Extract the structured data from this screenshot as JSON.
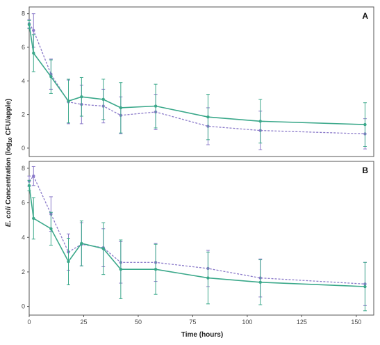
{
  "chart_data": {
    "type": "line",
    "xlabel": "Time (hours)",
    "ylabel_parts": [
      "E. coli",
      " Concentration (log",
      "10",
      " CFU/apple)"
    ],
    "xlim": [
      0,
      158
    ],
    "ylim": [
      -0.5,
      8.4
    ],
    "x_ticks": [
      0,
      25,
      50,
      75,
      100,
      125,
      150
    ],
    "y_ticks": [
      0,
      2,
      4,
      6,
      8
    ],
    "grid": false,
    "colors": {
      "solid": "#3aa88a",
      "dashed": "#8a79c9",
      "frame": "#555555"
    },
    "panels": [
      {
        "tag": "A",
        "series": [
          {
            "style": "solid",
            "points": [
              {
                "x": 0,
                "y": 7.35,
                "err": 0.25
              },
              {
                "x": 2,
                "y": 5.65,
                "err": 1.1
              },
              {
                "x": 10,
                "y": 4.25,
                "err": 1.0
              },
              {
                "x": 18,
                "y": 2.8,
                "err": 1.3
              },
              {
                "x": 24,
                "y": 3.05,
                "err": 1.15
              },
              {
                "x": 34,
                "y": 2.9,
                "err": 1.2
              },
              {
                "x": 42,
                "y": 2.4,
                "err": 1.5
              },
              {
                "x": 58,
                "y": 2.5,
                "err": 1.3
              },
              {
                "x": 82,
                "y": 1.85,
                "err": 1.35
              },
              {
                "x": 106,
                "y": 1.6,
                "err": 1.3
              },
              {
                "x": 154,
                "y": 1.4,
                "err": 1.3
              }
            ]
          },
          {
            "style": "dashed",
            "points": [
              {
                "x": 0,
                "y": 7.4,
                "err": 0.25
              },
              {
                "x": 2,
                "y": 7.0,
                "err": 1.0
              },
              {
                "x": 10,
                "y": 4.4,
                "err": 0.9
              },
              {
                "x": 18,
                "y": 2.75,
                "err": 1.3
              },
              {
                "x": 24,
                "y": 2.6,
                "err": 1.15
              },
              {
                "x": 34,
                "y": 2.5,
                "err": 1.0
              },
              {
                "x": 42,
                "y": 1.95,
                "err": 1.1
              },
              {
                "x": 58,
                "y": 2.15,
                "err": 1.05
              },
              {
                "x": 82,
                "y": 1.3,
                "err": 1.1
              },
              {
                "x": 106,
                "y": 1.05,
                "err": 1.15
              },
              {
                "x": 154,
                "y": 0.85,
                "err": 0.9
              }
            ]
          }
        ]
      },
      {
        "tag": "B",
        "series": [
          {
            "style": "solid",
            "points": [
              {
                "x": 0,
                "y": 7.0,
                "err": 0.3
              },
              {
                "x": 2,
                "y": 5.1,
                "err": 1.2
              },
              {
                "x": 10,
                "y": 4.5,
                "err": 0.95
              },
              {
                "x": 18,
                "y": 2.6,
                "err": 1.35
              },
              {
                "x": 24,
                "y": 3.65,
                "err": 1.3
              },
              {
                "x": 34,
                "y": 3.35,
                "err": 1.5
              },
              {
                "x": 42,
                "y": 2.15,
                "err": 1.7
              },
              {
                "x": 58,
                "y": 2.15,
                "err": 1.45
              },
              {
                "x": 82,
                "y": 1.65,
                "err": 1.5
              },
              {
                "x": 106,
                "y": 1.4,
                "err": 1.3
              },
              {
                "x": 154,
                "y": 1.15,
                "err": 1.4
              }
            ]
          },
          {
            "style": "dashed",
            "points": [
              {
                "x": 0,
                "y": 7.25,
                "err": 0.3
              },
              {
                "x": 2,
                "y": 7.55,
                "err": 0.55
              },
              {
                "x": 10,
                "y": 5.35,
                "err": 1.0
              },
              {
                "x": 18,
                "y": 3.15,
                "err": 1.05
              },
              {
                "x": 24,
                "y": 3.6,
                "err": 1.25
              },
              {
                "x": 34,
                "y": 3.4,
                "err": 1.1
              },
              {
                "x": 42,
                "y": 2.55,
                "err": 1.2
              },
              {
                "x": 58,
                "y": 2.55,
                "err": 1.1
              },
              {
                "x": 82,
                "y": 2.2,
                "err": 1.05
              },
              {
                "x": 106,
                "y": 1.65,
                "err": 1.1
              },
              {
                "x": 154,
                "y": 1.3,
                "err": 1.25
              }
            ]
          }
        ]
      }
    ]
  }
}
